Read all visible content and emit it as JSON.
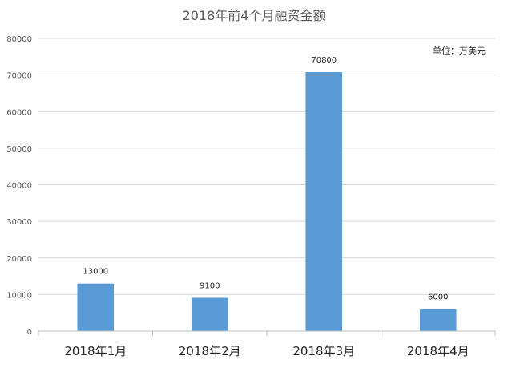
{
  "chart_data": {
    "type": "bar",
    "title": "2018年前4个月融资金额",
    "unit_note": "单位：万美元",
    "categories": [
      "2018年1月",
      "2018年2月",
      "2018年3月",
      "2018年4月"
    ],
    "values": [
      13000,
      9100,
      70800,
      6000
    ],
    "data_labels": [
      "13000",
      "9100",
      "70800",
      "6000"
    ],
    "ylim": [
      0,
      80000
    ],
    "yticks": [
      0,
      10000,
      20000,
      30000,
      40000,
      50000,
      60000,
      70000,
      80000
    ],
    "grid": true,
    "legend": "none",
    "bar_color": "#5b9bd5"
  }
}
